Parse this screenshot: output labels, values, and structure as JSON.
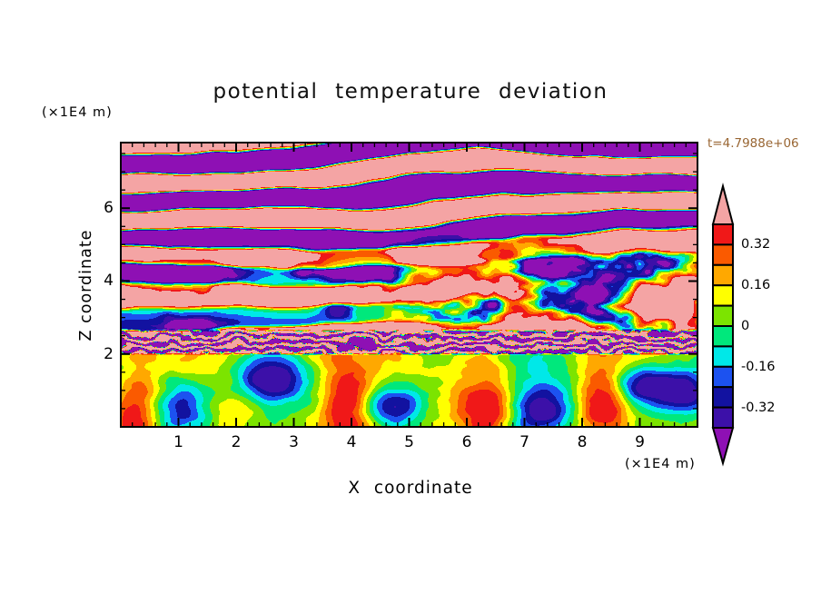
{
  "title": {
    "text": "potential temperature deviation"
  },
  "time_label": {
    "text": "t=4.7988e+06",
    "color": "#996633"
  },
  "axes": {
    "x": {
      "title": "X coordinate",
      "unit": "(×1E4 m)",
      "min": 0,
      "max": 10,
      "major_ticks": [
        1,
        2,
        3,
        4,
        5,
        6,
        7,
        8,
        9
      ],
      "major_tick_labels": [
        "1",
        "2",
        "3",
        "4",
        "5",
        "6",
        "7",
        "8",
        "9"
      ],
      "minor_tick_step": 0.2
    },
    "z": {
      "title": "Z coordinate",
      "unit": "(×1E4 m)",
      "min": 0,
      "max": 7.8,
      "major_ticks": [
        2,
        4,
        6
      ],
      "major_tick_labels": [
        "2",
        "4",
        "6"
      ],
      "minor_tick_step": 0.5
    }
  },
  "colorbar": {
    "tick_labels": [
      "0.32",
      "0.16",
      "0",
      "-0.16",
      "-0.32"
    ],
    "tick_values": [
      0.32,
      0.16,
      0,
      -0.16,
      -0.32
    ],
    "value_min": -0.4,
    "value_max": 0.4,
    "band_step": 0.08,
    "colors_low_to_high": [
      "#8E10B4",
      "#3C10A8",
      "#1212A0",
      "#1C52F0",
      "#00E8E8",
      "#00E87C",
      "#7CE400",
      "#FFFF00",
      "#FFA800",
      "#FA5A00",
      "#F01818",
      "#F4A4A4"
    ],
    "arrow_low_color": "#8E10B4",
    "arrow_high_color": "#F4A4A4"
  },
  "chart_data": {
    "type": "heatmap",
    "title": "potential temperature deviation",
    "xlabel": "X coordinate (×1E4 m)",
    "ylabel": "Z coordinate (×1E4 m)",
    "time_annotation": "t=4.7988e+06",
    "x_range": [
      0,
      10
    ],
    "z_range": [
      0,
      7.8
    ],
    "contour_levels": [
      -0.4,
      -0.32,
      -0.24,
      -0.16,
      -0.08,
      0,
      0.08,
      0.16,
      0.24,
      0.32,
      0.4
    ],
    "palette_low_to_high": [
      "#8E10B4",
      "#3C10A8",
      "#1212A0",
      "#1C52F0",
      "#00E8E8",
      "#00E87C",
      "#7CE400",
      "#FFFF00",
      "#FFA800",
      "#FA5A00",
      "#F01818",
      "#F4A4A4"
    ],
    "structure": {
      "stratified_layer": {
        "z_extent": [
          2.6,
          7.8
        ],
        "streak_wavenumber": 5.6,
        "description": "alternating saturated positive (pink, >0.40) and negative (purple, <-0.40) tilted gravity-wave streaks with thin rainbow contour edges"
      },
      "blob_band": {
        "z_center": 3.6,
        "z_sigma": 1.05,
        "description": "pink blobs ringed by red/orange/yellow contours, strongest on right half"
      },
      "transition_strip": {
        "z_extent": [
          2.0,
          2.6
        ],
        "description": "fine-scale turbulent mixing strip"
      },
      "convective_layer": {
        "z_extent": [
          0,
          2.0
        ],
        "description": "chartreuse/cyan boundary layer with warm plumes and cold pools"
      },
      "warm_plume_x": [
        0.25,
        3.9,
        6.35,
        8.35
      ],
      "cold_pool_x": [
        1.05,
        2.6,
        4.75,
        7.25,
        9.05,
        9.8
      ],
      "cold_pool_z": [
        0.5,
        1.4,
        0.6,
        0.4,
        1.1,
        0.9
      ]
    }
  }
}
